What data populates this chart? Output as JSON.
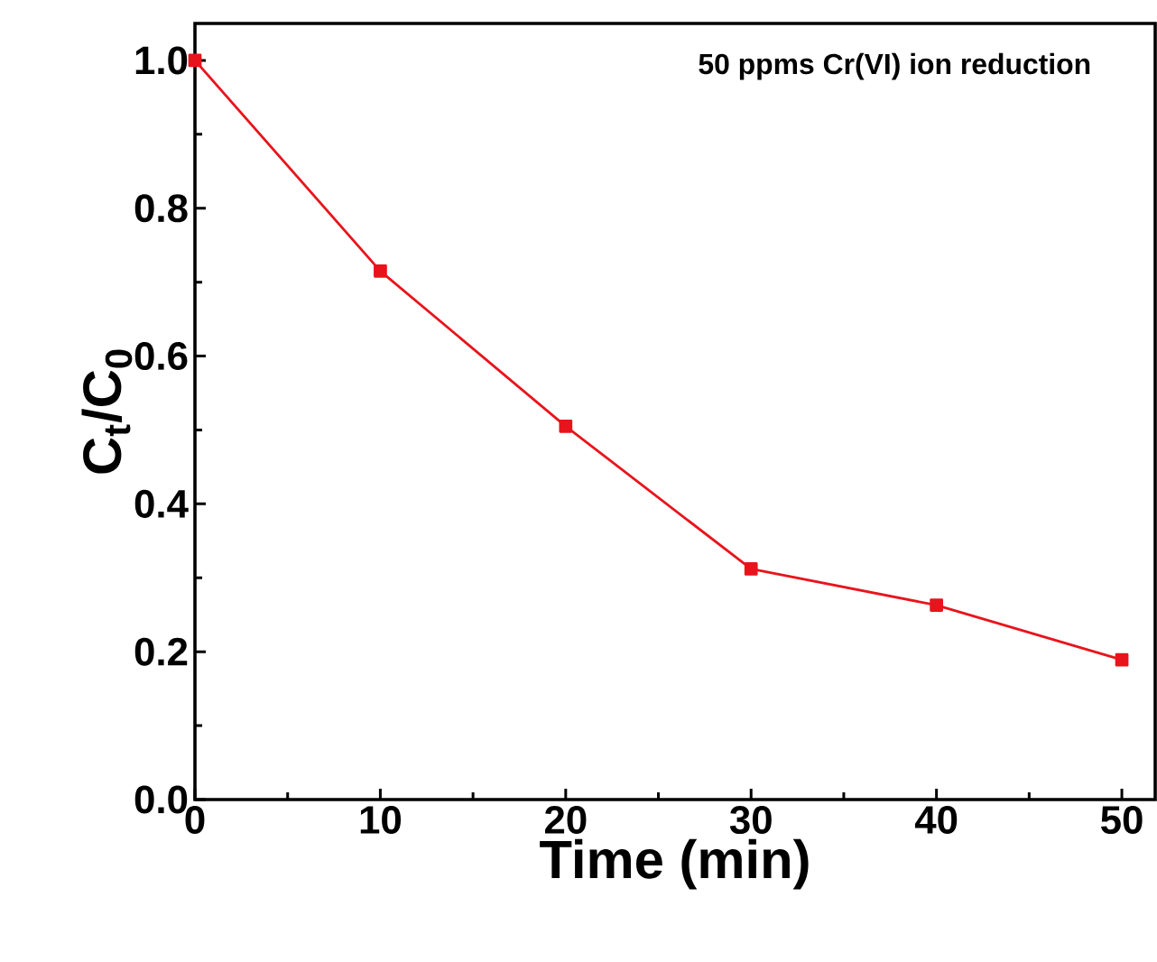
{
  "chart_data": {
    "type": "line",
    "xlabel": "Time (min)",
    "ylabel": "C$_{t}$/C$_{0}$",
    "annotations": [
      "50 ppms Cr(VI) ion reduction"
    ],
    "x": [
      0,
      10,
      20,
      30,
      40,
      50
    ],
    "series": [
      {
        "color": "#e8141c",
        "values": [
          1.0,
          0.715,
          0.505,
          0.312,
          0.263,
          0.189
        ]
      }
    ],
    "xlim": [
      0,
      51.8
    ],
    "ylim": [
      0,
      1.05
    ],
    "xticks": [
      0,
      10,
      20,
      30,
      40,
      50
    ],
    "yticks": [
      {
        "value": 0,
        "label": "0.0"
      },
      0.2,
      0.4,
      0.6,
      0.8,
      {
        "value": 1,
        "label": "1.0"
      }
    ],
    "marker": "square",
    "line_style": "solid",
    "grid": false,
    "legend": false
  }
}
